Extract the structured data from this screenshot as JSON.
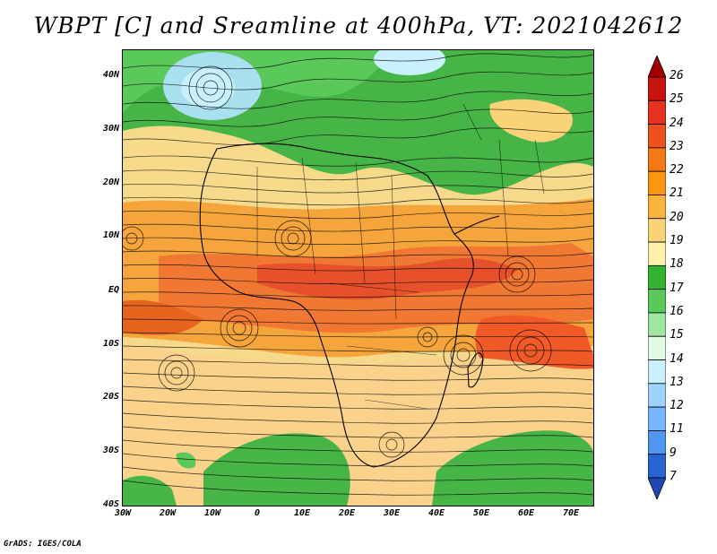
{
  "title": "WBPT [C] and Sreamline at 400hPa, VT: 2021042612",
  "y_axis_labels": [
    "40N",
    "30N",
    "20N",
    "10N",
    "EQ",
    "10S",
    "20S",
    "30S",
    "40S"
  ],
  "x_axis_labels": [
    "30W",
    "20W",
    "10W",
    "0",
    "10E",
    "20E",
    "30E",
    "40E",
    "50E",
    "60E",
    "70E"
  ],
  "colorbar": {
    "levels": [
      "26",
      "25",
      "24",
      "23",
      "22",
      "21",
      "20",
      "19",
      "18",
      "17",
      "16",
      "15",
      "14",
      "13",
      "12",
      "11",
      "9",
      "7"
    ],
    "colors": [
      "#a50000",
      "#c8140a",
      "#e6321e",
      "#f0501e",
      "#f57814",
      "#fa9614",
      "#fab43c",
      "#fad278",
      "#fff0aa",
      "#32b432",
      "#5ac85a",
      "#a0e6a0",
      "#e1fae1",
      "#c8f0ff",
      "#a0d2ff",
      "#78b4ff",
      "#5096f0",
      "#2864d2",
      "#1e46b4"
    ]
  },
  "footer": "GrADS: IGES/COLA"
}
